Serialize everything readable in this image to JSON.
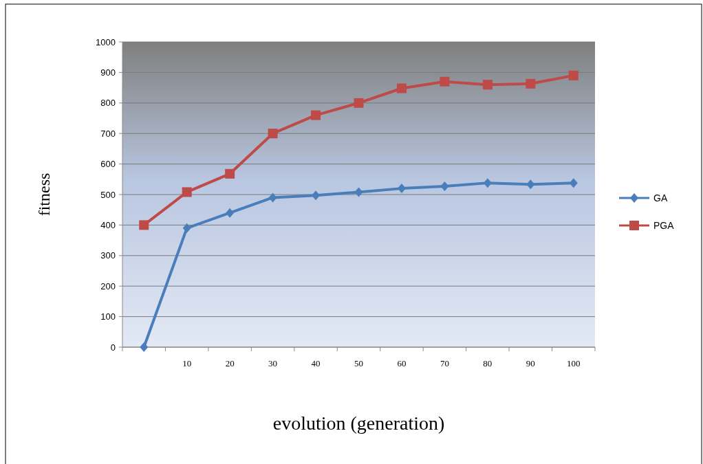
{
  "chart_data": {
    "type": "line",
    "xlabel": "evolution (generation)",
    "ylabel": "fitness",
    "categories": [
      null,
      "10",
      "20",
      "30",
      "40",
      "50",
      "60",
      "70",
      "80",
      "90",
      "100"
    ],
    "series": [
      {
        "name": "GA",
        "color": "#4a7ebb",
        "marker": "diamond",
        "values": [
          0,
          390,
          440,
          490,
          497,
          508,
          520,
          527,
          538,
          533,
          538
        ]
      },
      {
        "name": "PGA",
        "color": "#be4b48",
        "marker": "square",
        "values": [
          400,
          508,
          568,
          700,
          760,
          800,
          848,
          870,
          860,
          863,
          890
        ]
      }
    ],
    "ylim": [
      0,
      1000
    ],
    "yticks": [
      0,
      100,
      200,
      300,
      400,
      500,
      600,
      700,
      800,
      900,
      1000
    ],
    "grid": "y",
    "legend": "right"
  }
}
